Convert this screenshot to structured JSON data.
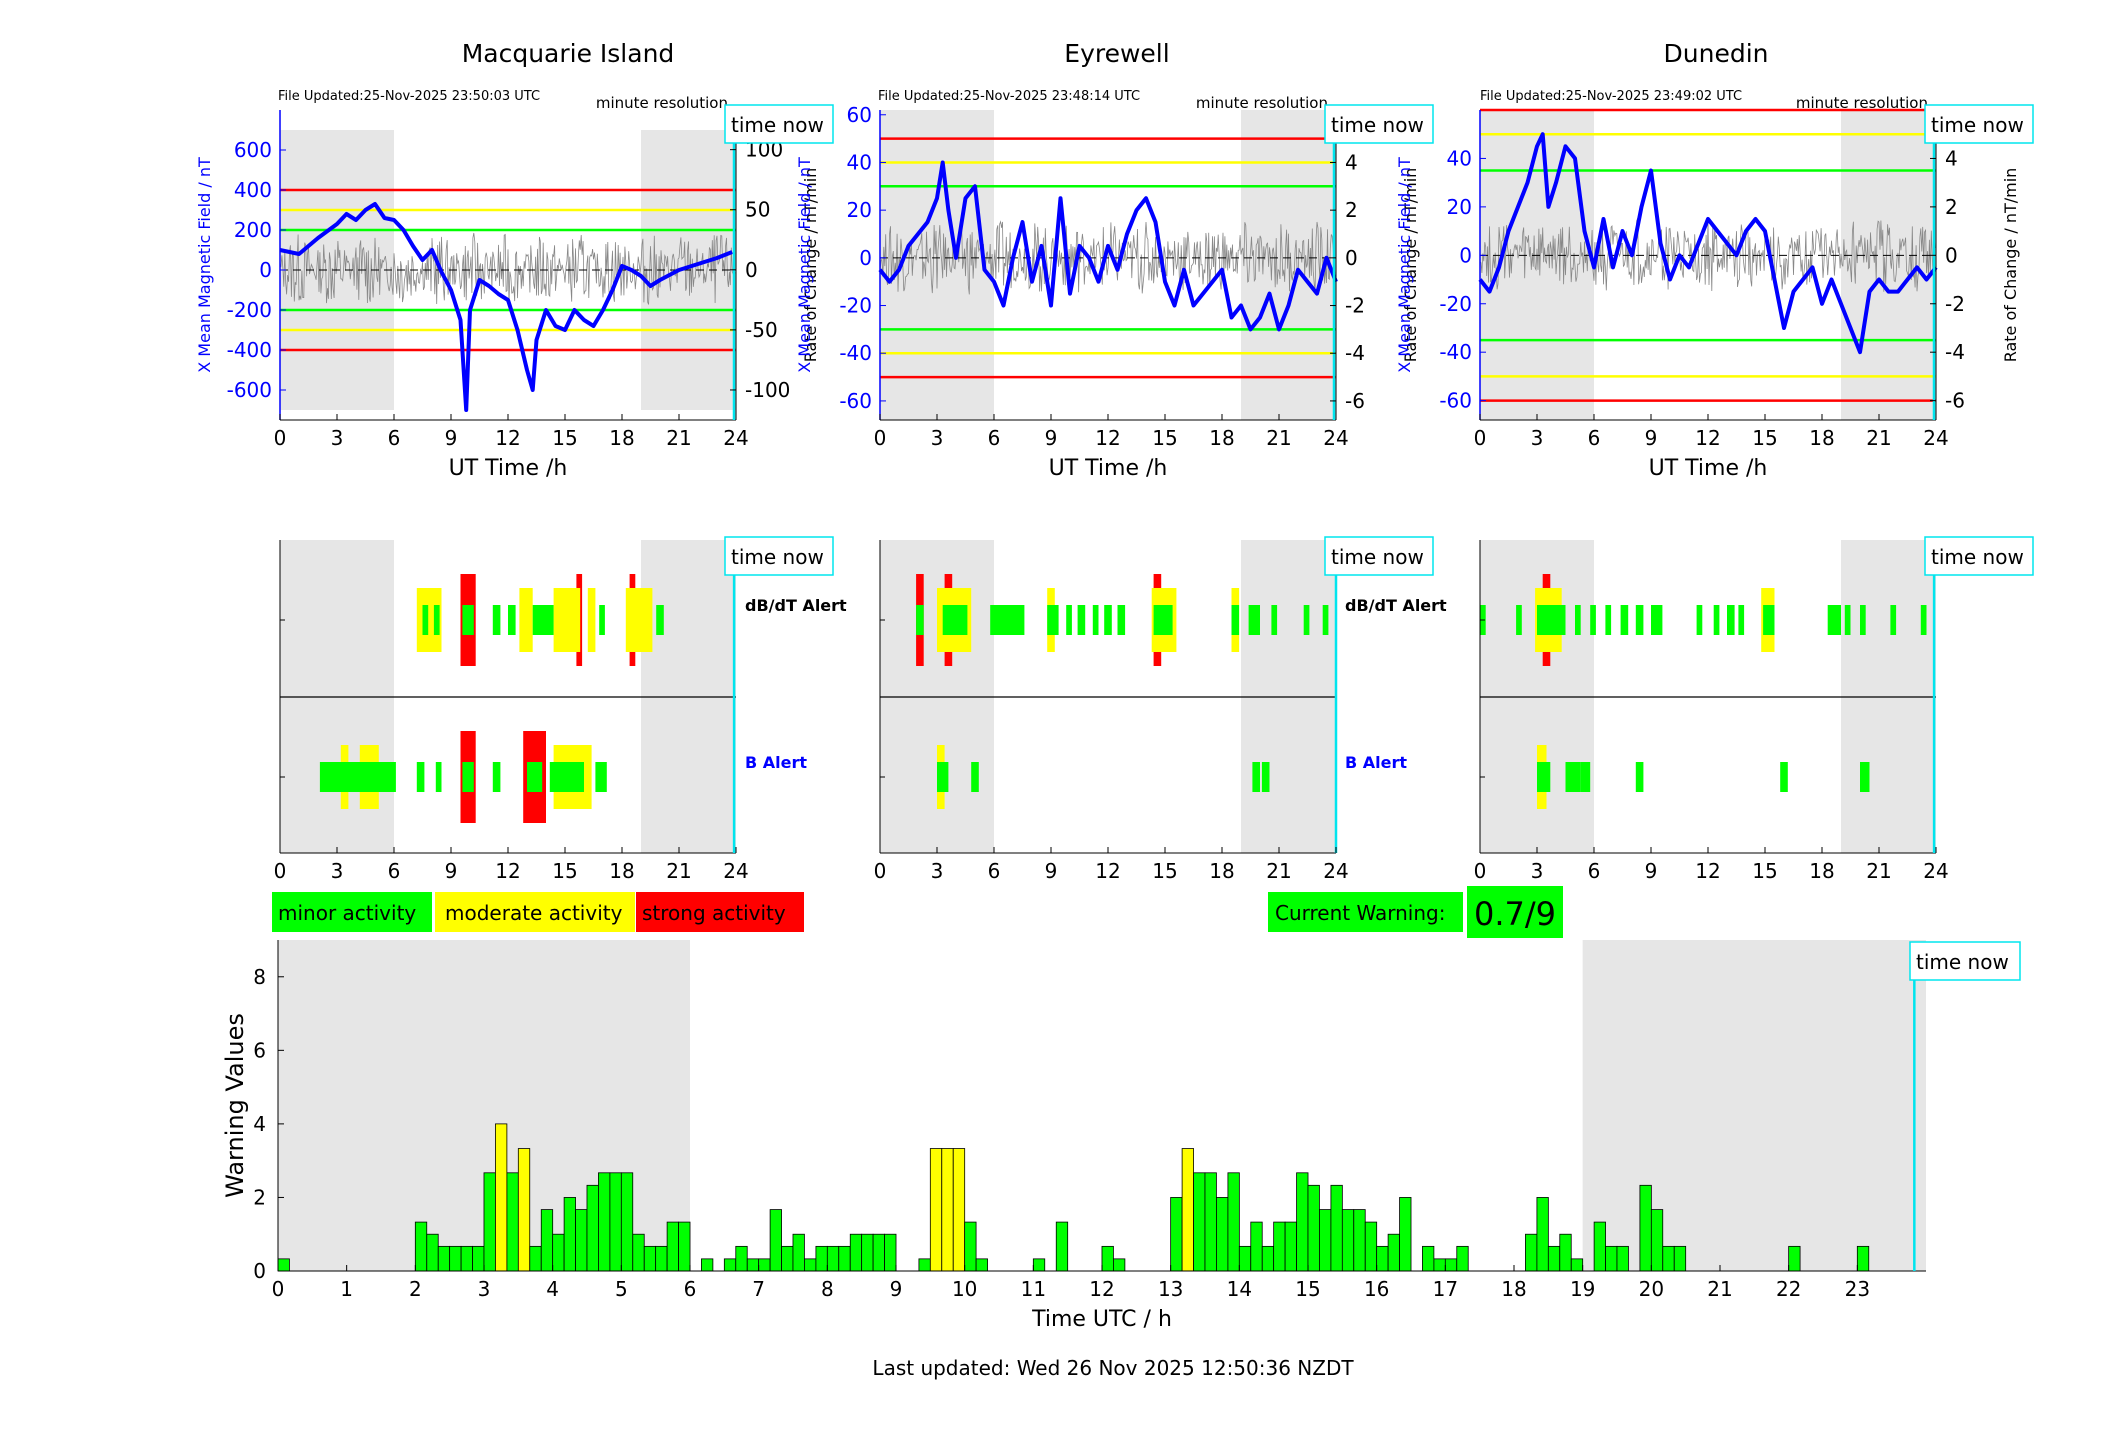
{
  "stations": [
    {
      "title": "Macquarie Island",
      "file_updated": "File Updated:25-Nov-2025 23:50:03 UTC",
      "left_ticks": [
        "600",
        "400",
        "200",
        "0",
        "-200",
        "-400",
        "-600"
      ],
      "right_ticks": [
        "100",
        "50",
        "0",
        "-50",
        "-100"
      ]
    },
    {
      "title": "Eyrewell",
      "file_updated": "File Updated:25-Nov-2025 23:48:14 UTC",
      "left_ticks": [
        "60",
        "40",
        "20",
        "0",
        "-20",
        "-40",
        "-60"
      ],
      "right_ticks": [
        "6",
        "4",
        "2",
        "0",
        "-2",
        "-4",
        "-6"
      ]
    },
    {
      "title": "Dunedin",
      "file_updated": "File Updated:25-Nov-2025 23:49:02 UTC",
      "left_ticks": [
        "40",
        "20",
        "0",
        "-20",
        "-40",
        "-60"
      ],
      "right_ticks": [
        "4",
        "2",
        "0",
        "-2",
        "-4",
        "-6"
      ]
    }
  ],
  "labels": {
    "resolution": "minute resolution",
    "time_now": "time now",
    "ut_xlabel": "UT Time /h",
    "left_ylabel": "X Mean Magnetic Field / nT",
    "right_ylabel": "Rate of Change / nT/min",
    "dbdt_alert": "dB/dT Alert",
    "b_alert": "B Alert",
    "hour_ticks": [
      "0",
      "3",
      "6",
      "9",
      "12",
      "15",
      "18",
      "21",
      "24"
    ]
  },
  "legend": {
    "minor": "minor activity",
    "moderate": "moderate activity",
    "strong": "strong activity"
  },
  "warning": {
    "label": "Current Warning:",
    "value": "0.7/9"
  },
  "footer": "Last updated: Wed 26 Nov 2025 12:50:36 NZDT",
  "colors": {
    "minor": "#00ff00",
    "moderate": "#ffff00",
    "strong": "#ff0000",
    "field": "#0000ff",
    "time_now": "#00e5ee",
    "night": "#e6e6e6"
  },
  "chart_data": [
    {
      "type": "line",
      "title": "Macquarie Island",
      "xlabel": "UT Time /h",
      "ylabel": "X Mean Magnetic Field / nT",
      "y2label": "Rate of Change / nT/min",
      "xlim": [
        0,
        24
      ],
      "ylim": [
        -750,
        800
      ],
      "y2lim": [
        -125,
        133
      ],
      "thresholds": {
        "green": 200,
        "yellow": 300,
        "red": 400
      },
      "series": [
        {
          "x": [
            0,
            1,
            2,
            3,
            3.5,
            4,
            4.5,
            5,
            5.5,
            6,
            6.5,
            7,
            7.5,
            8,
            8.5,
            9,
            9.5,
            9.8,
            10,
            10.5,
            11,
            11.5,
            12,
            12.5,
            13,
            13.3,
            13.5,
            14,
            14.5,
            15,
            15.5,
            16,
            16.5,
            17,
            17.5,
            18,
            18.5,
            19,
            19.5,
            20,
            21,
            22,
            23,
            23.8
          ],
          "y": [
            100,
            80,
            160,
            230,
            280,
            250,
            300,
            330,
            260,
            250,
            200,
            120,
            50,
            100,
            -10,
            -100,
            -250,
            -700,
            -200,
            -50,
            -80,
            -120,
            -150,
            -300,
            -500,
            -600,
            -350,
            -200,
            -280,
            -300,
            -200,
            -250,
            -280,
            -200,
            -100,
            20,
            0,
            -30,
            -80,
            -50,
            0,
            30,
            60,
            90
          ]
        }
      ]
    },
    {
      "type": "line",
      "title": "Eyrewell",
      "xlabel": "UT Time /h",
      "ylabel": "X Mean Magnetic Field / nT",
      "y2label": "Rate of Change / nT/min",
      "xlim": [
        0,
        24
      ],
      "ylim": [
        -68,
        62
      ],
      "y2lim": [
        -6.8,
        6.2
      ],
      "thresholds": {
        "green": 30,
        "yellow": 40,
        "red": 50
      },
      "series": [
        {
          "x": [
            0,
            0.5,
            1,
            1.5,
            2,
            2.5,
            3,
            3.3,
            3.6,
            4,
            4.5,
            5,
            5.5,
            6,
            6.5,
            7,
            7.5,
            8,
            8.5,
            9,
            9.5,
            10,
            10.5,
            11,
            11.5,
            12,
            12.5,
            13,
            13.5,
            14,
            14.5,
            15,
            15.5,
            16,
            16.5,
            17,
            17.5,
            18,
            18.5,
            19,
            19.5,
            20,
            20.5,
            21,
            21.5,
            22,
            22.5,
            23,
            23.5,
            24
          ],
          "y": [
            -5,
            -10,
            -5,
            5,
            10,
            15,
            25,
            40,
            20,
            0,
            25,
            30,
            -5,
            -10,
            -20,
            0,
            15,
            -10,
            5,
            -20,
            25,
            -15,
            5,
            0,
            -10,
            5,
            -5,
            10,
            20,
            25,
            15,
            -10,
            -20,
            -5,
            -20,
            -15,
            -10,
            -5,
            -25,
            -20,
            -30,
            -25,
            -15,
            -30,
            -20,
            -5,
            -10,
            -15,
            0,
            -10
          ]
        }
      ]
    },
    {
      "type": "line",
      "title": "Dunedin",
      "xlabel": "UT Time /h",
      "ylabel": "X Mean Magnetic Field / nT",
      "y2label": "Rate of Change / nT/min",
      "xlim": [
        0,
        24
      ],
      "ylim": [
        -68,
        60
      ],
      "y2lim": [
        -6.8,
        6.0
      ],
      "thresholds": {
        "green": 35,
        "yellow": 50,
        "red": 60
      },
      "series": [
        {
          "x": [
            0,
            0.5,
            1,
            1.5,
            2,
            2.5,
            3,
            3.3,
            3.6,
            4,
            4.5,
            5,
            5.5,
            6,
            6.5,
            7,
            7.5,
            8,
            8.5,
            9,
            9.5,
            10,
            10.5,
            11,
            11.5,
            12,
            12.5,
            13,
            13.5,
            14,
            14.5,
            15,
            15.5,
            16,
            16.5,
            17,
            17.5,
            18,
            18.5,
            19,
            19.5,
            20,
            20.5,
            21,
            21.5,
            22,
            22.5,
            23,
            23.5,
            24
          ],
          "y": [
            -10,
            -15,
            -5,
            10,
            20,
            30,
            45,
            50,
            20,
            30,
            45,
            40,
            10,
            -5,
            15,
            -5,
            10,
            0,
            20,
            35,
            5,
            -10,
            0,
            -5,
            5,
            15,
            10,
            5,
            0,
            10,
            15,
            10,
            -10,
            -30,
            -15,
            -10,
            -5,
            -20,
            -10,
            -20,
            -30,
            -40,
            -15,
            -10,
            -15,
            -15,
            -10,
            -5,
            -10,
            -5
          ]
        }
      ]
    },
    {
      "type": "bar",
      "title": "",
      "xlabel": "Time UTC / h",
      "ylabel": "Warning Values",
      "xlim": [
        0,
        24
      ],
      "ylim": [
        0,
        9
      ],
      "bar_width_h": 0.1667,
      "x": [
        0.083,
        2.083,
        2.25,
        2.417,
        2.583,
        2.75,
        2.917,
        3.083,
        3.25,
        3.417,
        3.583,
        3.75,
        3.917,
        4.083,
        4.25,
        4.417,
        4.583,
        4.75,
        4.917,
        5.083,
        5.25,
        5.417,
        5.583,
        5.75,
        5.917,
        6.25,
        6.583,
        6.75,
        6.917,
        7.083,
        7.25,
        7.417,
        7.583,
        7.75,
        7.917,
        8.083,
        8.25,
        8.417,
        8.583,
        8.75,
        8.917,
        9.417,
        9.583,
        9.75,
        9.917,
        10.083,
        10.25,
        11.083,
        11.417,
        12.083,
        12.25,
        13.083,
        13.25,
        13.417,
        13.583,
        13.75,
        13.917,
        14.083,
        14.25,
        14.417,
        14.583,
        14.75,
        14.917,
        15.083,
        15.25,
        15.417,
        15.583,
        15.75,
        15.917,
        16.083,
        16.25,
        16.417,
        16.75,
        16.917,
        17.083,
        17.25,
        18.25,
        18.417,
        18.583,
        18.75,
        18.917,
        19.25,
        19.417,
        19.583,
        19.917,
        20.083,
        20.25,
        20.417,
        22.083,
        23.083
      ],
      "values": [
        0.33,
        1.33,
        1.0,
        0.67,
        0.67,
        0.67,
        0.67,
        2.67,
        4.0,
        2.67,
        3.33,
        0.67,
        1.67,
        1.0,
        2.0,
        1.67,
        2.33,
        2.67,
        2.67,
        2.67,
        1.0,
        0.67,
        0.67,
        1.33,
        1.33,
        0.33,
        0.33,
        0.67,
        0.33,
        0.33,
        1.67,
        0.67,
        1.0,
        0.33,
        0.67,
        0.67,
        0.67,
        1.0,
        1.0,
        1.0,
        1.0,
        0.33,
        3.33,
        3.33,
        3.33,
        1.33,
        0.33,
        0.33,
        1.33,
        0.67,
        0.33,
        2.0,
        3.33,
        2.67,
        2.67,
        2.0,
        2.67,
        0.67,
        1.33,
        0.67,
        1.33,
        1.33,
        2.67,
        2.33,
        1.67,
        2.33,
        1.67,
        1.67,
        1.33,
        0.67,
        1.0,
        2.0,
        0.67,
        0.33,
        0.33,
        0.67,
        1.0,
        2.0,
        0.67,
        1.0,
        0.33,
        1.33,
        0.67,
        0.67,
        2.33,
        1.67,
        0.67,
        0.67,
        0.67,
        0.67
      ],
      "levels": [
        "minor",
        "minor",
        "minor",
        "minor",
        "minor",
        "minor",
        "minor",
        "minor",
        "moderate",
        "minor",
        "moderate",
        "minor",
        "minor",
        "minor",
        "minor",
        "minor",
        "minor",
        "minor",
        "minor",
        "minor",
        "minor",
        "minor",
        "minor",
        "minor",
        "minor",
        "minor",
        "minor",
        "minor",
        "minor",
        "minor",
        "minor",
        "minor",
        "minor",
        "minor",
        "minor",
        "minor",
        "minor",
        "minor",
        "minor",
        "minor",
        "minor",
        "minor",
        "moderate",
        "moderate",
        "moderate",
        "minor",
        "minor",
        "minor",
        "minor",
        "minor",
        "minor",
        "minor",
        "moderate",
        "minor",
        "minor",
        "minor",
        "minor",
        "minor",
        "minor",
        "minor",
        "minor",
        "minor",
        "minor",
        "minor",
        "minor",
        "minor",
        "minor",
        "minor",
        "minor",
        "minor",
        "minor",
        "minor",
        "minor",
        "minor",
        "minor",
        "minor",
        "minor",
        "minor",
        "minor",
        "minor",
        "minor",
        "minor",
        "minor",
        "minor",
        "minor",
        "minor",
        "minor",
        "minor",
        "minor",
        "minor"
      ],
      "night_bands_h": [
        [
          0,
          6
        ],
        [
          19,
          24
        ]
      ],
      "time_now_h": 23.83
    }
  ],
  "alerts": [
    {
      "dbdt": [
        [
          7.2,
          8.5,
          "moderate"
        ],
        [
          7.5,
          7.8,
          "minor"
        ],
        [
          8.1,
          8.4,
          "minor"
        ],
        [
          9.5,
          10.3,
          "strong"
        ],
        [
          9.6,
          10.2,
          "minor"
        ],
        [
          11.2,
          11.6,
          "minor"
        ],
        [
          12.0,
          12.4,
          "minor"
        ],
        [
          12.6,
          13.3,
          "moderate"
        ],
        [
          13.3,
          14.0,
          "minor"
        ],
        [
          14.0,
          14.4,
          "minor"
        ],
        [
          14.4,
          15.8,
          "moderate"
        ],
        [
          15.6,
          15.9,
          "strong"
        ],
        [
          16.2,
          16.6,
          "moderate"
        ],
        [
          16.8,
          17.1,
          "minor"
        ],
        [
          18.4,
          18.7,
          "strong"
        ],
        [
          18.2,
          19.6,
          "moderate"
        ],
        [
          19.8,
          20.2,
          "minor"
        ]
      ],
      "b": [
        [
          2.1,
          6.1,
          "minor"
        ],
        [
          3.2,
          3.6,
          "moderate"
        ],
        [
          4.2,
          5.2,
          "moderate"
        ],
        [
          7.2,
          7.6,
          "minor"
        ],
        [
          8.2,
          8.5,
          "minor"
        ],
        [
          9.5,
          10.3,
          "strong"
        ],
        [
          9.6,
          10.2,
          "minor"
        ],
        [
          11.2,
          11.6,
          "minor"
        ],
        [
          12.8,
          14.0,
          "strong"
        ],
        [
          13.0,
          13.8,
          "minor"
        ],
        [
          14.2,
          16.0,
          "minor"
        ],
        [
          14.4,
          16.4,
          "moderate"
        ],
        [
          16.6,
          17.2,
          "minor"
        ]
      ],
      "time_now_h": 23.9
    },
    {
      "dbdt": [
        [
          1.9,
          2.3,
          "strong"
        ],
        [
          1.9,
          2.3,
          "minor"
        ],
        [
          3.4,
          3.8,
          "strong"
        ],
        [
          3.0,
          4.8,
          "moderate"
        ],
        [
          3.3,
          4.6,
          "minor"
        ],
        [
          5.8,
          7.6,
          "minor"
        ],
        [
          8.8,
          9.2,
          "moderate"
        ],
        [
          8.8,
          9.4,
          "minor"
        ],
        [
          9.8,
          10.1,
          "minor"
        ],
        [
          10.4,
          10.8,
          "minor"
        ],
        [
          11.2,
          11.5,
          "minor"
        ],
        [
          11.8,
          12.2,
          "minor"
        ],
        [
          12.5,
          12.9,
          "minor"
        ],
        [
          14.4,
          14.8,
          "strong"
        ],
        [
          14.3,
          15.6,
          "moderate"
        ],
        [
          14.4,
          15.4,
          "minor"
        ],
        [
          18.5,
          18.9,
          "moderate"
        ],
        [
          18.5,
          18.9,
          "minor"
        ],
        [
          19.4,
          20.0,
          "minor"
        ],
        [
          20.6,
          20.9,
          "minor"
        ],
        [
          22.3,
          22.6,
          "minor"
        ],
        [
          23.3,
          23.6,
          "minor"
        ]
      ],
      "b": [
        [
          3.0,
          3.4,
          "moderate"
        ],
        [
          3.0,
          3.6,
          "minor"
        ],
        [
          4.8,
          5.2,
          "minor"
        ],
        [
          19.6,
          20.0,
          "minor"
        ],
        [
          20.1,
          20.5,
          "minor"
        ]
      ],
      "time_now_h": 24.0
    },
    {
      "dbdt": [
        [
          0.0,
          0.3,
          "minor"
        ],
        [
          1.9,
          2.2,
          "minor"
        ],
        [
          3.3,
          3.7,
          "strong"
        ],
        [
          2.9,
          4.3,
          "moderate"
        ],
        [
          3.0,
          4.5,
          "minor"
        ],
        [
          5.0,
          5.3,
          "minor"
        ],
        [
          5.8,
          6.1,
          "minor"
        ],
        [
          6.6,
          6.9,
          "minor"
        ],
        [
          7.4,
          7.8,
          "minor"
        ],
        [
          8.2,
          8.6,
          "minor"
        ],
        [
          9.0,
          9.6,
          "minor"
        ],
        [
          11.4,
          11.7,
          "minor"
        ],
        [
          12.3,
          12.6,
          "minor"
        ],
        [
          13.0,
          13.4,
          "minor"
        ],
        [
          13.6,
          13.9,
          "minor"
        ],
        [
          14.8,
          15.5,
          "moderate"
        ],
        [
          14.9,
          15.5,
          "minor"
        ],
        [
          18.3,
          19.0,
          "minor"
        ],
        [
          19.2,
          19.5,
          "minor"
        ],
        [
          20.0,
          20.3,
          "minor"
        ],
        [
          21.6,
          21.9,
          "minor"
        ],
        [
          23.2,
          23.5,
          "minor"
        ]
      ],
      "b": [
        [
          3.0,
          3.5,
          "moderate"
        ],
        [
          3.0,
          3.7,
          "minor"
        ],
        [
          4.5,
          5.3,
          "minor"
        ],
        [
          5.3,
          5.8,
          "minor"
        ],
        [
          8.2,
          8.6,
          "minor"
        ],
        [
          15.8,
          16.2,
          "minor"
        ],
        [
          20.0,
          20.5,
          "minor"
        ]
      ],
      "time_now_h": 23.9
    }
  ]
}
